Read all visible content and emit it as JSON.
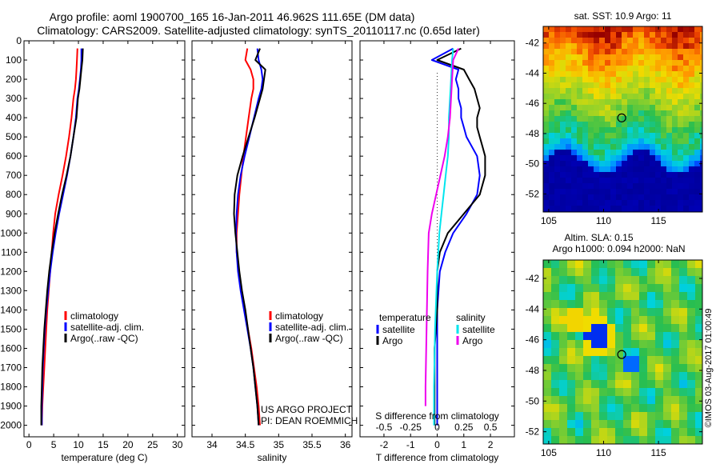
{
  "header": {
    "title_line1": "Argo profile: aoml 1900700_165 16-Jan-2011 46.962S 111.65E (DM data)",
    "title_line2": "Climatology: CARS2009. Satellite-adjusted climatology: synTS_20110117.nc (0.65d later)"
  },
  "colors": {
    "climatology": "#ff0000",
    "satellite": "#0000ff",
    "argo": "#000000",
    "salinity_satellite": "#00e5ee",
    "salinity_argo": "#ee00ee"
  },
  "depth_axis": {
    "ylim": [
      0,
      2060
    ],
    "ticks": [
      0,
      100,
      200,
      300,
      400,
      500,
      600,
      700,
      800,
      900,
      1000,
      1100,
      1200,
      1300,
      1400,
      1500,
      1600,
      1700,
      1800,
      1900,
      2000
    ]
  },
  "chart_data": [
    {
      "type": "line",
      "xlabel": "temperature (deg C)",
      "xlim": [
        -1,
        31.5
      ],
      "xticks": [
        0,
        5,
        10,
        15,
        20,
        25,
        30
      ],
      "ylim": [
        0,
        2060
      ],
      "legend": [
        "climatology",
        "satellite-adj. clim.",
        "Argo(..raw -QC)"
      ],
      "legend_position": "bottom-center",
      "series": [
        {
          "name": "climatology",
          "color": "#ff0000",
          "x": [
            9.8,
            9.7,
            9.6,
            9.5,
            9.3,
            9.0,
            8.6,
            8.1,
            7.5,
            6.8,
            6.0,
            5.3,
            4.9,
            4.6,
            4.3,
            4.0,
            3.7,
            3.5,
            3.3,
            3.1,
            2.9,
            2.7,
            2.6
          ],
          "y": [
            40,
            100,
            150,
            200,
            250,
            300,
            400,
            500,
            600,
            700,
            800,
            900,
            1000,
            1100,
            1200,
            1300,
            1400,
            1500,
            1600,
            1700,
            1800,
            1900,
            2000
          ]
        },
        {
          "name": "satellite-adj. clim.",
          "color": "#0000ff",
          "x": [
            10.6,
            10.6,
            10.5,
            10.3,
            10.1,
            9.8,
            9.5,
            9.0,
            8.4,
            7.7,
            6.9,
            6.1,
            5.4,
            4.8,
            4.3,
            3.9,
            3.5,
            3.2,
            3.0,
            2.8,
            2.7,
            2.6,
            2.6
          ],
          "y": [
            40,
            100,
            150,
            200,
            250,
            300,
            400,
            500,
            600,
            700,
            800,
            900,
            1000,
            1100,
            1200,
            1300,
            1400,
            1500,
            1600,
            1700,
            1800,
            1900,
            2000
          ]
        },
        {
          "name": "Argo(..raw -QC)",
          "color": "#000000",
          "x": [
            10.9,
            10.8,
            10.6,
            10.4,
            10.2,
            9.9,
            9.6,
            9.0,
            8.4,
            7.6,
            6.7,
            5.9,
            5.2,
            4.6,
            4.1,
            3.7,
            3.4,
            3.1,
            2.9,
            2.7,
            2.6,
            2.5,
            2.5
          ],
          "y": [
            40,
            100,
            150,
            200,
            250,
            300,
            400,
            500,
            600,
            700,
            800,
            900,
            1000,
            1100,
            1200,
            1300,
            1400,
            1500,
            1600,
            1700,
            1800,
            1900,
            2000
          ]
        }
      ]
    },
    {
      "type": "line",
      "xlabel": "salinity",
      "xlim": [
        33.7,
        36.1
      ],
      "xticks": [
        34,
        34.5,
        35,
        35.5,
        36
      ],
      "ylim": [
        0,
        2060
      ],
      "legend": [
        "climatology",
        "satellite-adj. clim.",
        "Argo(..raw -QC)"
      ],
      "legend_position": "bottom-right",
      "annotation": [
        "US ARGO PROJECT",
        "PI: DEAN ROEMMICH"
      ],
      "series": [
        {
          "name": "climatology",
          "color": "#ff0000",
          "x": [
            34.53,
            34.5,
            34.58,
            34.62,
            34.62,
            34.59,
            34.55,
            34.51,
            34.47,
            34.44,
            34.41,
            34.39,
            34.37,
            34.37,
            34.4,
            34.44,
            34.49,
            34.54,
            34.59,
            34.63,
            34.67,
            34.7,
            34.72
          ],
          "y": [
            40,
            100,
            150,
            200,
            250,
            300,
            400,
            500,
            600,
            700,
            800,
            900,
            1000,
            1100,
            1200,
            1300,
            1400,
            1500,
            1600,
            1700,
            1800,
            1900,
            2000
          ]
        },
        {
          "name": "satellite-adj. clim.",
          "color": "#0000ff",
          "x": [
            34.68,
            34.7,
            34.74,
            34.76,
            34.74,
            34.7,
            34.63,
            34.56,
            34.49,
            34.43,
            34.39,
            34.37,
            34.36,
            34.37,
            34.39,
            34.43,
            34.48,
            34.53,
            34.58,
            34.62,
            34.65,
            34.68,
            34.7
          ],
          "y": [
            40,
            100,
            150,
            200,
            250,
            300,
            400,
            500,
            600,
            700,
            800,
            900,
            1000,
            1100,
            1200,
            1300,
            1400,
            1500,
            1600,
            1700,
            1800,
            1900,
            2000
          ]
        },
        {
          "name": "Argo(..raw -QC)",
          "color": "#000000",
          "x": [
            34.72,
            34.65,
            34.8,
            34.78,
            34.76,
            34.72,
            34.64,
            34.55,
            34.46,
            34.38,
            34.34,
            34.33,
            34.35,
            34.38,
            34.41,
            34.45,
            34.5,
            34.54,
            34.58,
            34.62,
            34.65,
            34.68,
            34.7
          ],
          "y": [
            40,
            100,
            150,
            200,
            250,
            300,
            400,
            500,
            600,
            700,
            800,
            900,
            1000,
            1100,
            1200,
            1300,
            1400,
            1500,
            1600,
            1700,
            1800,
            1900,
            2000
          ]
        }
      ]
    },
    {
      "type": "line",
      "xlabel": "T difference from climatology",
      "xlabel_top": "S difference from climatology",
      "xlim": [
        -2.9,
        2.9
      ],
      "xticks": [
        -2,
        -1,
        0,
        1,
        2
      ],
      "xticks_top_values": [
        -0.5,
        -0.25,
        0,
        0.25,
        0.5
      ],
      "xticks_top_labels": [
        "-0.5",
        "-0.25",
        "0",
        "0.25",
        "0.5"
      ],
      "ylim": [
        0,
        2060
      ],
      "legend_groups": [
        {
          "title": "temperature",
          "entries": [
            "satellite",
            "Argo"
          ]
        },
        {
          "title": "salinity",
          "entries": [
            "satellite",
            "Argo"
          ]
        }
      ],
      "legend_position": "bottom-center",
      "series": [
        {
          "name": "satellite",
          "group": "temperature",
          "color": "#0000ff",
          "x": [
            0.6,
            -0.2,
            0.8,
            0.7,
            0.8,
            0.8,
            0.9,
            0.9,
            1.0,
            1.1,
            1.3,
            1.5,
            1.6,
            1.5,
            1.1,
            0.6,
            0.3,
            0.1,
            0.0,
            0.0,
            0.0,
            0.0,
            0.0
          ],
          "y": [
            40,
            100,
            150,
            200,
            250,
            300,
            350,
            400,
            450,
            500,
            550,
            600,
            700,
            800,
            900,
            1000,
            1100,
            1200,
            1400,
            1600,
            1800,
            1900,
            2000
          ]
        },
        {
          "name": "Argo",
          "group": "temperature",
          "color": "#000000",
          "x": [
            0.9,
            0.0,
            1.0,
            1.2,
            1.4,
            1.5,
            1.6,
            1.5,
            1.5,
            1.6,
            1.7,
            1.8,
            1.8,
            1.6,
            1.0,
            0.4,
            0.1,
            0.0,
            0.0,
            -0.1,
            -0.1,
            -0.1,
            -0.1
          ],
          "y": [
            40,
            100,
            150,
            200,
            250,
            300,
            350,
            400,
            450,
            500,
            550,
            600,
            700,
            800,
            900,
            1000,
            1100,
            1200,
            1400,
            1600,
            1800,
            1900,
            2000
          ]
        },
        {
          "name": "satellite",
          "group": "salinity",
          "color": "#00e5ee",
          "x": [
            0.15,
            0.14,
            0.13,
            0.12,
            0.11,
            0.11,
            0.1,
            0.08,
            0.06,
            0.04,
            0.02,
            0.0,
            -0.02,
            -0.03,
            -0.03
          ],
          "y": [
            40,
            100,
            200,
            300,
            400,
            500,
            600,
            700,
            800,
            900,
            1000,
            1200,
            1500,
            1800,
            2000
          ]
        },
        {
          "name": "Argo",
          "group": "salinity",
          "color": "#ee00ee",
          "x": [
            0.2,
            0.15,
            0.14,
            0.13,
            0.12,
            0.1,
            0.07,
            0.03,
            -0.01,
            -0.05,
            -0.08,
            -0.09,
            -0.1,
            -0.11,
            -0.11
          ],
          "y": [
            40,
            100,
            200,
            300,
            400,
            500,
            600,
            700,
            800,
            900,
            1000,
            1200,
            1500,
            1800,
            1900
          ]
        }
      ]
    },
    {
      "type": "heatmap",
      "title": "sat. SST: 10.9 Argo: 11",
      "xlim": [
        104.5,
        119
      ],
      "ylim": [
        -53.2,
        -40.9
      ],
      "xticks": [
        105,
        110,
        115
      ],
      "yticks": [
        -52,
        -50,
        -48,
        -46,
        -44,
        -42
      ],
      "marker": {
        "lon": 111.65,
        "lat": -46.962
      }
    },
    {
      "type": "heatmap",
      "title_line1": "Altim. SLA: 0.15",
      "title_line2": "Argo h1000: 0.094 h2000: NaN",
      "xlim": [
        104.5,
        119
      ],
      "ylim": [
        -52.8,
        -40.8
      ],
      "xticks": [
        105,
        110,
        115
      ],
      "yticks": [
        -52,
        -50,
        -48,
        -46,
        -44,
        -42
      ],
      "marker": {
        "lon": 111.65,
        "lat": -46.962
      }
    }
  ],
  "credit": "©IMOS 03-Aug-2017 01:00:49"
}
